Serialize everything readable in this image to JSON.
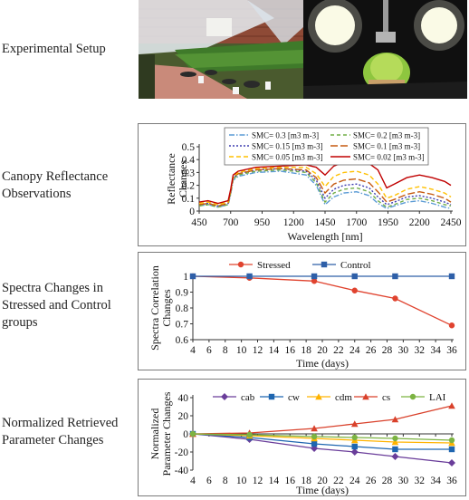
{
  "labels": {
    "setup": "Experimental Setup",
    "canopy_l1": "Canopy Reflectance",
    "canopy_l2": "Observations",
    "spectra_l1": "Spectra Changes in",
    "spectra_l2": "Stressed and Control",
    "spectra_l3": "groups",
    "param_l1": "Normalized Retrieved",
    "param_l2": "Parameter Changes"
  },
  "chart_data": [
    {
      "type": "line",
      "title": "",
      "xlabel": "Wavelength [nm]",
      "ylabel_lines": [
        "Reflectance",
        "Changes"
      ],
      "xlim": [
        450,
        2450
      ],
      "ylim": [
        0,
        0.5
      ],
      "xticks": [
        450,
        700,
        950,
        1200,
        1450,
        1700,
        1950,
        2200,
        2450
      ],
      "yticks": [
        0,
        0.1,
        0.2,
        0.3,
        0.4,
        0.5
      ],
      "ytick_labels": [
        "0",
        "0.1",
        "0.2",
        "0.3",
        "0.4",
        "0.5"
      ],
      "legend": "top, 2 columns",
      "x": [
        450,
        520,
        600,
        680,
        700,
        720,
        760,
        900,
        1100,
        1300,
        1380,
        1450,
        1520,
        1600,
        1700,
        1800,
        1870,
        1940,
        2000,
        2100,
        2200,
        2300,
        2400,
        2450
      ],
      "series": [
        {
          "name": "SMC= 0.3 [m3 m-3]",
          "color": "#5b9bd5",
          "dash": "6 2 1.5 2",
          "values": [
            0.04,
            0.05,
            0.03,
            0.05,
            0.13,
            0.24,
            0.27,
            0.3,
            0.31,
            0.28,
            0.2,
            0.05,
            0.11,
            0.14,
            0.15,
            0.12,
            0.06,
            0.02,
            0.04,
            0.07,
            0.08,
            0.06,
            0.03,
            0.02
          ]
        },
        {
          "name": "SMC= 0.2 [m3 m-3]",
          "color": "#70ad47",
          "dash": "4 3",
          "values": [
            0.04,
            0.05,
            0.03,
            0.05,
            0.14,
            0.25,
            0.28,
            0.31,
            0.32,
            0.3,
            0.22,
            0.07,
            0.14,
            0.17,
            0.18,
            0.15,
            0.08,
            0.03,
            0.05,
            0.09,
            0.1,
            0.08,
            0.05,
            0.04
          ]
        },
        {
          "name": "SMC= 0.15 [m3 m-3]",
          "color": "#3f3fb0",
          "dash": "2 2",
          "values": [
            0.05,
            0.06,
            0.04,
            0.06,
            0.15,
            0.26,
            0.29,
            0.32,
            0.33,
            0.31,
            0.24,
            0.1,
            0.17,
            0.2,
            0.21,
            0.18,
            0.11,
            0.05,
            0.07,
            0.11,
            0.12,
            0.1,
            0.07,
            0.05
          ]
        },
        {
          "name": "SMC= 0.1 [m3 m-3]",
          "color": "#c55a11",
          "dash": "8 3",
          "values": [
            0.05,
            0.06,
            0.04,
            0.06,
            0.15,
            0.26,
            0.29,
            0.32,
            0.33,
            0.32,
            0.26,
            0.14,
            0.21,
            0.24,
            0.25,
            0.22,
            0.15,
            0.07,
            0.09,
            0.13,
            0.15,
            0.13,
            0.1,
            0.07
          ]
        },
        {
          "name": "SMC= 0.05 [m3 m-3]",
          "color": "#ffc000",
          "dash": "5 3",
          "values": [
            0.06,
            0.07,
            0.05,
            0.07,
            0.16,
            0.27,
            0.3,
            0.33,
            0.34,
            0.34,
            0.29,
            0.19,
            0.27,
            0.3,
            0.31,
            0.28,
            0.21,
            0.1,
            0.12,
            0.17,
            0.19,
            0.17,
            0.14,
            0.11
          ]
        },
        {
          "name": "SMC= 0.02 [m3 m-3]",
          "color": "#c00000",
          "dash": "",
          "values": [
            0.07,
            0.08,
            0.06,
            0.08,
            0.17,
            0.28,
            0.31,
            0.34,
            0.35,
            0.36,
            0.34,
            0.28,
            0.35,
            0.38,
            0.4,
            0.37,
            0.32,
            0.18,
            0.21,
            0.26,
            0.28,
            0.26,
            0.23,
            0.2
          ]
        }
      ]
    },
    {
      "type": "line",
      "title": "",
      "xlabel": "Time (days)",
      "ylabel_lines": [
        "Spectra Correlation",
        "Changes"
      ],
      "xlim": [
        4,
        36
      ],
      "ylim": [
        0.6,
        1.0
      ],
      "xticks": [
        4,
        6,
        8,
        10,
        12,
        14,
        16,
        18,
        20,
        22,
        24,
        26,
        28,
        30,
        32,
        34,
        36
      ],
      "yticks": [
        0.6,
        0.7,
        0.8,
        0.9,
        1.0
      ],
      "ytick_labels": [
        "0.6",
        "0.7",
        "0.8",
        "0.9",
        "1"
      ],
      "legend": "top",
      "x": [
        4,
        11,
        19,
        24,
        29,
        36
      ],
      "series": [
        {
          "name": "Stressed",
          "color": "#e0432f",
          "marker": "circle",
          "values": [
            1.0,
            0.99,
            0.97,
            0.91,
            0.86,
            0.69
          ]
        },
        {
          "name": "Control",
          "color": "#2e5fa8",
          "marker": "square",
          "values": [
            1.0,
            1.0,
            1.0,
            1.0,
            1.0,
            1.0
          ]
        }
      ]
    },
    {
      "type": "line",
      "title": "",
      "xlabel": "Time (days)",
      "ylabel_lines": [
        "Normalized",
        "Parameter Changes"
      ],
      "xlim": [
        4,
        36
      ],
      "ylim": [
        -40,
        40
      ],
      "xticks": [
        4,
        6,
        8,
        10,
        12,
        14,
        16,
        18,
        20,
        22,
        24,
        26,
        28,
        30,
        32,
        34,
        36
      ],
      "yticks": [
        -40,
        -20,
        0,
        20,
        40
      ],
      "ytick_labels": [
        "-40",
        "-20",
        "0",
        "20",
        "40"
      ],
      "legend": "top",
      "x": [
        4,
        11,
        19,
        24,
        29,
        36
      ],
      "series": [
        {
          "name": "cab",
          "color": "#6a3d9a",
          "marker": "diamond",
          "values": [
            0,
            -6,
            -16,
            -20,
            -25,
            -32
          ]
        },
        {
          "name": "cw",
          "color": "#1f66b0",
          "marker": "square",
          "values": [
            0,
            -4,
            -11,
            -14,
            -17,
            -17
          ]
        },
        {
          "name": "cdm",
          "color": "#ffb300",
          "marker": "triangle",
          "values": [
            0,
            -2,
            -5,
            -7,
            -9,
            -10
          ]
        },
        {
          "name": "cs",
          "color": "#d9412b",
          "marker": "triangle",
          "values": [
            0,
            1,
            6,
            11,
            16,
            31
          ]
        },
        {
          "name": "LAI",
          "color": "#7cb342",
          "marker": "circle",
          "values": [
            0,
            -1,
            -3,
            -4,
            -5,
            -7
          ]
        }
      ]
    }
  ]
}
